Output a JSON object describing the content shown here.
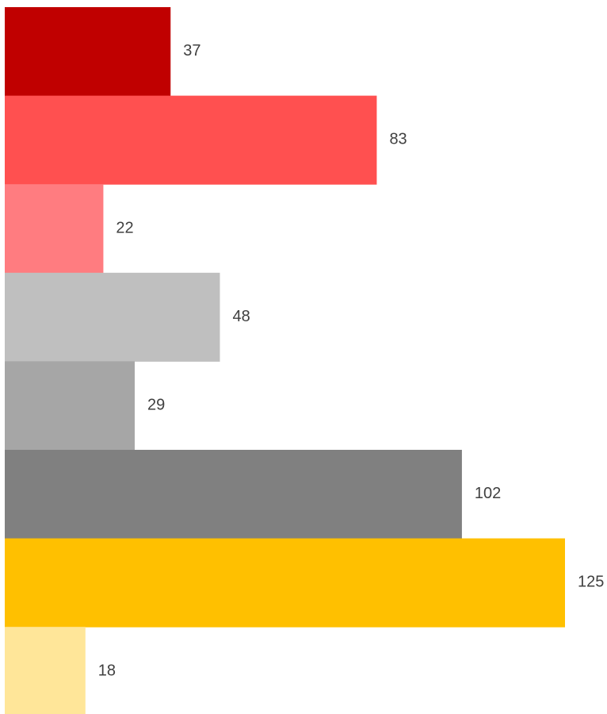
{
  "chart_data": {
    "type": "bar",
    "orientation": "horizontal",
    "values": [
      37,
      83,
      22,
      48,
      29,
      102,
      125,
      18
    ],
    "value_labels": [
      "37",
      "83",
      "22",
      "48",
      "29",
      "102",
      "125",
      "18"
    ],
    "bar_colors": [
      "#C00000",
      "#FF5050",
      "#FF7C80",
      "#BFBFBF",
      "#A6A6A6",
      "#808080",
      "#FFC000",
      "#FFE699"
    ],
    "xlim": [
      0,
      125
    ],
    "title": "",
    "xlabel": "",
    "ylabel": "",
    "grid": false,
    "legend": "none",
    "label_color": "#404040"
  }
}
